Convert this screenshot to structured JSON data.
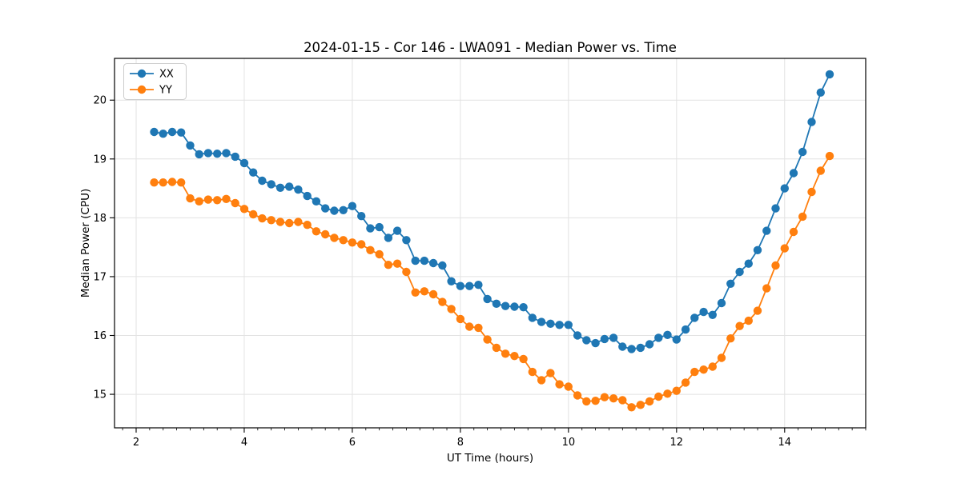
{
  "figure": {
    "background": "#ffffff",
    "spine_color": "#000000",
    "grid_color": "#e2e2e2"
  },
  "chart_data": {
    "type": "line",
    "title": "2024-01-15 - Cor 146 - LWA091 - Median Power vs. Time",
    "xlabel": "UT Time (hours)",
    "ylabel": "Median Power (CPU)",
    "xlim": [
      1.6,
      15.5
    ],
    "ylim": [
      14.43,
      20.71
    ],
    "xticks": [
      2,
      4,
      6,
      8,
      10,
      12,
      14
    ],
    "yticks": [
      15,
      16,
      17,
      18,
      19,
      20
    ],
    "minor_xtick_step": 0.25,
    "grid": true,
    "legend_position": "upper left",
    "marker": "circle",
    "x": [
      2.333,
      2.5,
      2.667,
      2.833,
      3.0,
      3.167,
      3.333,
      3.5,
      3.667,
      3.833,
      4.0,
      4.167,
      4.333,
      4.5,
      4.667,
      4.833,
      5.0,
      5.167,
      5.333,
      5.5,
      5.667,
      5.833,
      6.0,
      6.167,
      6.333,
      6.5,
      6.667,
      6.833,
      7.0,
      7.167,
      7.333,
      7.5,
      7.667,
      7.833,
      8.0,
      8.167,
      8.333,
      8.5,
      8.667,
      8.833,
      9.0,
      9.167,
      9.333,
      9.5,
      9.667,
      9.833,
      10.0,
      10.167,
      10.333,
      10.5,
      10.667,
      10.833,
      11.0,
      11.167,
      11.333,
      11.5,
      11.667,
      11.833,
      12.0,
      12.167,
      12.333,
      12.5,
      12.667,
      12.833,
      13.0,
      13.167,
      13.333,
      13.5,
      13.667,
      13.833,
      14.0,
      14.167,
      14.333,
      14.5,
      14.667,
      14.833
    ],
    "series": [
      {
        "name": "XX",
        "color": "#1f77b4",
        "values": [
          19.46,
          19.43,
          19.46,
          19.45,
          19.23,
          19.08,
          19.1,
          19.09,
          19.1,
          19.04,
          18.93,
          18.77,
          18.63,
          18.57,
          18.51,
          18.53,
          18.48,
          18.37,
          18.28,
          18.16,
          18.12,
          18.13,
          18.2,
          18.03,
          17.82,
          17.84,
          17.66,
          17.78,
          17.62,
          17.27,
          17.27,
          17.23,
          17.19,
          16.92,
          16.84,
          16.84,
          16.86,
          16.62,
          16.54,
          16.5,
          16.49,
          16.48,
          16.3,
          16.23,
          16.2,
          16.18,
          16.18,
          16.0,
          15.92,
          15.87,
          15.94,
          15.96,
          15.81,
          15.77,
          15.79,
          15.85,
          15.96,
          16.01,
          15.93,
          16.1,
          16.3,
          16.4,
          16.35,
          16.55,
          16.88,
          17.08,
          17.22,
          17.45,
          17.78,
          18.16,
          18.5,
          18.76,
          19.12,
          19.63,
          20.13,
          20.44
        ]
      },
      {
        "name": "YY",
        "color": "#ff7f0e",
        "values": [
          18.6,
          18.6,
          18.61,
          18.6,
          18.33,
          18.28,
          18.31,
          18.3,
          18.32,
          18.25,
          18.15,
          18.06,
          17.99,
          17.96,
          17.93,
          17.91,
          17.93,
          17.88,
          17.77,
          17.72,
          17.66,
          17.62,
          17.58,
          17.55,
          17.45,
          17.38,
          17.2,
          17.22,
          17.08,
          16.73,
          16.75,
          16.7,
          16.57,
          16.45,
          16.28,
          16.15,
          16.13,
          15.93,
          15.79,
          15.69,
          15.65,
          15.6,
          15.38,
          15.24,
          15.36,
          15.17,
          15.13,
          14.98,
          14.88,
          14.89,
          14.95,
          14.93,
          14.9,
          14.78,
          14.82,
          14.88,
          14.96,
          15.01,
          15.06,
          15.2,
          15.38,
          15.42,
          15.47,
          15.62,
          15.95,
          16.16,
          16.25,
          16.42,
          16.8,
          17.19,
          17.48,
          17.76,
          18.02,
          18.44,
          18.8,
          19.05
        ]
      }
    ]
  }
}
